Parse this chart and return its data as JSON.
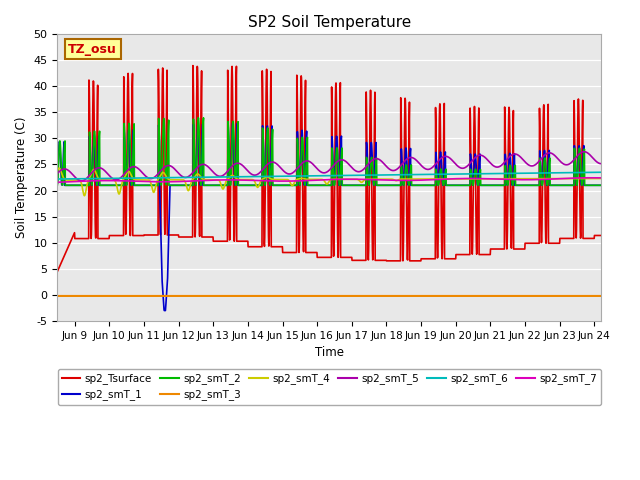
{
  "title": "SP2 Soil Temperature",
  "ylabel": "Soil Temperature (C)",
  "xlabel": "Time",
  "xlim_days": [
    8.5,
    24.2
  ],
  "ylim": [
    -5,
    50
  ],
  "yticks": [
    -5,
    0,
    5,
    10,
    15,
    20,
    25,
    30,
    35,
    40,
    45,
    50
  ],
  "xtick_positions": [
    9,
    10,
    11,
    12,
    13,
    14,
    15,
    16,
    17,
    18,
    19,
    20,
    21,
    22,
    23,
    24
  ],
  "xtick_labels": [
    "Jun 9",
    "Jun 10",
    "Jun 11",
    "Jun 12",
    "Jun 13",
    "Jun 14",
    "Jun 15",
    "Jun 16",
    "Jun 17",
    "Jun 18",
    "Jun 19",
    "Jun 20",
    "Jun 21",
    "Jun 22",
    "Jun 23",
    "Jun 24"
  ],
  "annotation_text": "TZ_osu",
  "annotation_color": "#cc0000",
  "annotation_bg": "#ffff99",
  "annotation_border": "#aa6600",
  "bg_color": "#e8e8e8",
  "fig_width": 6.4,
  "fig_height": 4.8,
  "dpi": 100,
  "series": [
    {
      "name": "sp2_Tsurface",
      "color": "#dd0000",
      "lw": 1.2
    },
    {
      "name": "sp2_smT_1",
      "color": "#0000cc",
      "lw": 1.2
    },
    {
      "name": "sp2_smT_2",
      "color": "#00bb00",
      "lw": 1.2
    },
    {
      "name": "sp2_smT_3",
      "color": "#ee8800",
      "lw": 1.5
    },
    {
      "name": "sp2_smT_4",
      "color": "#cccc00",
      "lw": 1.2
    },
    {
      "name": "sp2_smT_5",
      "color": "#aa00aa",
      "lw": 1.2
    },
    {
      "name": "sp2_smT_6",
      "color": "#00bbbb",
      "lw": 1.2
    },
    {
      "name": "sp2_smT_7",
      "color": "#dd00bb",
      "lw": 1.2
    }
  ]
}
